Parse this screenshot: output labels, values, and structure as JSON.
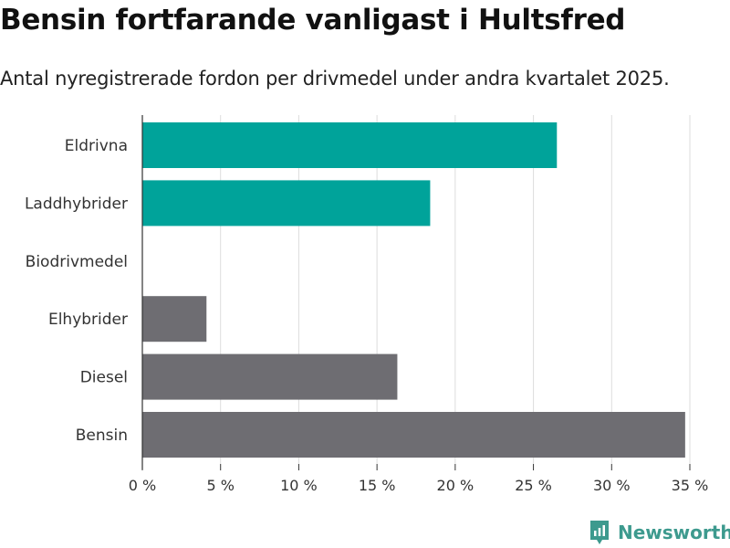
{
  "title": "Bensin fortfarande vanligast i Hultsfred",
  "subtitle": "Antal nyregistrerade fordon per drivmedel under andra kvartalet 2025.",
  "brand": {
    "name": "Newsworthy",
    "icon": "newsworthy-logo-icon",
    "color": "#3d9a8e"
  },
  "chart_data": {
    "type": "bar",
    "orientation": "horizontal",
    "categories": [
      "Eldrivna",
      "Laddhybrider",
      "Biodrivmedel",
      "Elhybrider",
      "Diesel",
      "Bensin"
    ],
    "values": [
      26.5,
      18.4,
      0,
      4.1,
      16.3,
      34.7
    ],
    "colors": [
      "#00a39a",
      "#00a39a",
      "#00a39a",
      "#6e6d72",
      "#6e6d72",
      "#6e6d72"
    ],
    "xlim": [
      0,
      35
    ],
    "xticks": [
      0,
      5,
      10,
      15,
      20,
      25,
      30,
      35
    ],
    "tick_labels": [
      "0 %",
      "5 %",
      "10 %",
      "15 %",
      "20 %",
      "25 %",
      "30 %",
      "35 %"
    ],
    "grid": true,
    "xlabel": "",
    "ylabel": ""
  }
}
